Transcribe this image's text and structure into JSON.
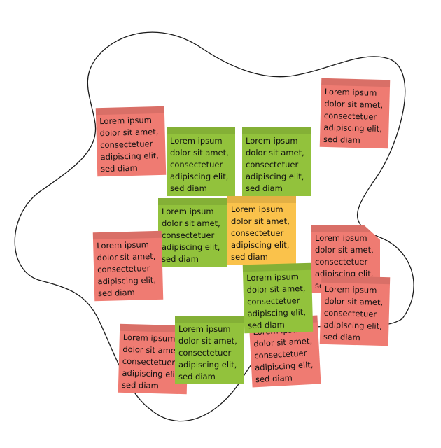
{
  "colors": {
    "outline": "#1a1a1a",
    "red_note": "#ef7b72",
    "green_note": "#92c23c",
    "orange_note": "#fac24b"
  },
  "notes": [
    {
      "color": "red",
      "text": "Lorem ipsum dolor sit amet, consectetuer adipiscing elit, sed diam"
    },
    {
      "color": "red",
      "text": "Lorem ipsum dolor sit amet, consectetuer adipiscing elit, sed diam"
    },
    {
      "color": "green",
      "text": "Lorem ipsum dolor sit amet, consectetuer adipiscing elit, sed diam"
    },
    {
      "color": "green",
      "text": "Lorem ipsum dolor sit amet, consectetuer adipiscing elit, sed diam"
    },
    {
      "color": "green",
      "text": "Lorem ipsum dolor sit amet, consectetuer adipiscing elit, sed diam"
    },
    {
      "color": "orange",
      "text": "Lorem ipsum dolor sit amet, consectetuer adipiscing elit, sed diam"
    },
    {
      "color": "red",
      "text": "Lorem ipsum dolor sit amet, consectetuer adipiscing elit, sed diam"
    },
    {
      "color": "red",
      "text": "Lorem ipsum dolor sit amet, consectetuer adipiscing elit, sed diam"
    },
    {
      "color": "red",
      "text": "Lorem ipsum dolor sit amet, consectetuer adipiscing elit, sed diam"
    },
    {
      "color": "red",
      "text": "Lorem ipsum dolor sit amet, consectetuer adipiscing elit, sed diam"
    },
    {
      "color": "green",
      "text": "Lorem ipsum dolor sit amet, consectetuer adipiscing elit, sed diam"
    },
    {
      "color": "red",
      "text": "Lorem ipsum dolor sit amet, consectetuer adipiscing elit, sed diam"
    },
    {
      "color": "green",
      "text": "Lorem ipsum dolor sit amet, consectetuer adipiscing elit, sed diam"
    }
  ]
}
